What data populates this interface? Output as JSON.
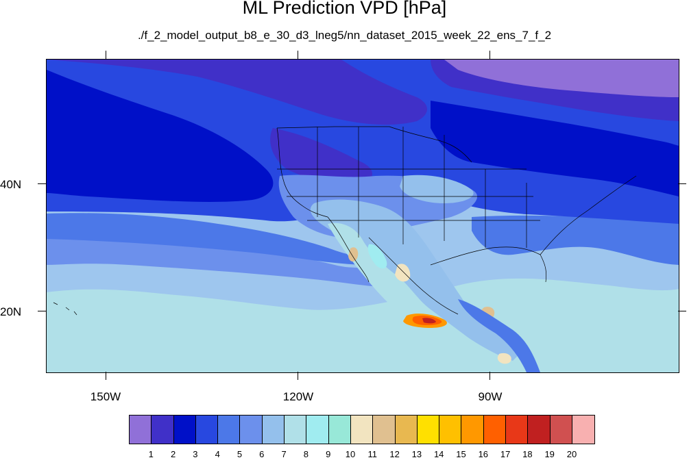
{
  "title": "ML Prediction VPD [hPa]",
  "subtitle": "./f_2_model_output_b8_e_30_d3_lneg5/nn_dataset_2015_week_22_ens_7_f_2",
  "lat_labels": [
    "40N",
    "20N"
  ],
  "lon_labels": [
    "150W",
    "120W",
    "90W"
  ],
  "colorbar": {
    "labels": [
      "1",
      "2",
      "3",
      "4",
      "5",
      "6",
      "7",
      "8",
      "9",
      "10",
      "11",
      "12",
      "13",
      "14",
      "15",
      "16",
      "17",
      "18",
      "19",
      "20"
    ],
    "colors": [
      "#9070d8",
      "#4030c8",
      "#0010c8",
      "#2848e0",
      "#4c78e8",
      "#6c90ec",
      "#94c0ec",
      "#b0e0e8",
      "#a0ecf0",
      "#98e8d8",
      "#f2e4c0",
      "#e0c090",
      "#e8b850",
      "#ffe000",
      "#ffc000",
      "#ff9800",
      "#ff6000",
      "#e83818",
      "#c02020",
      "#d05050",
      "#f8b0b0"
    ]
  },
  "map_colors": {
    "base_ocean": "#9ec6ee",
    "level_1": "#9070d8",
    "level_2": "#4030c8",
    "level_3": "#0010c8",
    "level_4": "#2848e0",
    "level_5": "#4c78e8",
    "level_6": "#6c90ec",
    "level_7": "#94c0ec",
    "level_8": "#b0e0e8",
    "level_9": "#a0ecf0",
    "level_11": "#f2e4c0",
    "level_12": "#e0c090",
    "level_16": "#ff9800",
    "level_17": "#ff6000",
    "level_18": "#e83818",
    "level_19": "#c02020"
  }
}
